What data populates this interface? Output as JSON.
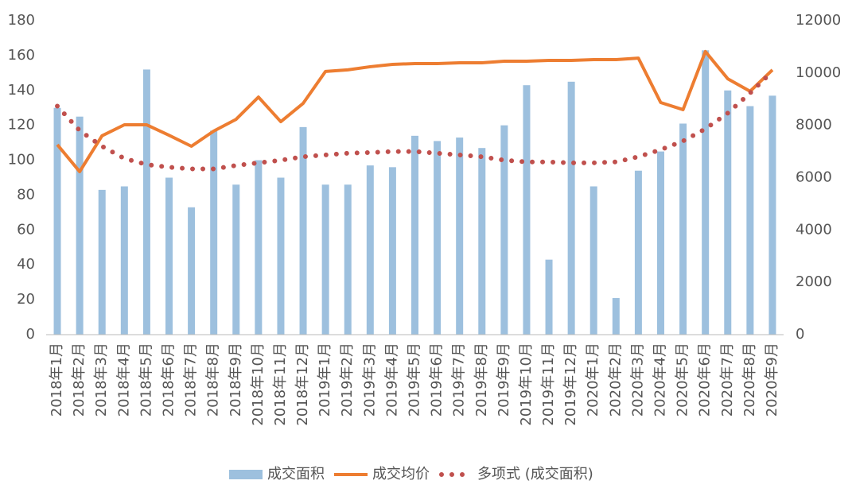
{
  "chart_data": {
    "type": "bar",
    "categories": [
      "2018年1月",
      "2018年2月",
      "2018年3月",
      "2018年4月",
      "2018年5月",
      "2018年6月",
      "2018年7月",
      "2018年8月",
      "2018年9月",
      "2018年10月",
      "2018年11月",
      "2018年12月",
      "2019年1月",
      "2019年2月",
      "2019年3月",
      "2019年4月",
      "2019年5月",
      "2019年6月",
      "2019年7月",
      "2019年8月",
      "2019年9月",
      "2019年10月",
      "2019年11月",
      "2019年12月",
      "2020年1月",
      "2020年2月",
      "2020年3月",
      "2020年4月",
      "2020年5月",
      "2020年6月",
      "2020年7月",
      "2020年8月",
      "2020年9月"
    ],
    "series": [
      {
        "name": "成交面积",
        "type": "bar",
        "color": "#9dc0de",
        "values": [
          130,
          125,
          83,
          85,
          152,
          90,
          73,
          117,
          86,
          100,
          90,
          119,
          86,
          86,
          97,
          96,
          114,
          111,
          113,
          107,
          120,
          143,
          43,
          145,
          85,
          21,
          94,
          105,
          121,
          163,
          140,
          131,
          137
        ]
      },
      {
        "name": "成交均价",
        "type": "line",
        "axis": "y2",
        "color": "#ed7d31",
        "values": [
          7260,
          6230,
          7600,
          8020,
          8020,
          7620,
          7200,
          7780,
          8230,
          9080,
          8140,
          8840,
          10060,
          10120,
          10240,
          10330,
          10360,
          10360,
          10390,
          10390,
          10450,
          10450,
          10480,
          10480,
          10510,
          10510,
          10570,
          8870,
          8600,
          10820,
          9780,
          9300,
          10120
        ]
      },
      {
        "name": "多项式 (成交面积)",
        "type": "dotted",
        "color": "#c0504d",
        "values": [
          131,
          117,
          108,
          101,
          97.5,
          96,
          95,
          95,
          97,
          98.5,
          100,
          102,
          103,
          104,
          104.4,
          105,
          105,
          104,
          103,
          102,
          100,
          99,
          99,
          98.5,
          98.5,
          99,
          102,
          106,
          111,
          118,
          127,
          138.5,
          151
        ]
      }
    ],
    "ylim": [
      0,
      180
    ],
    "yticks": [
      0,
      20,
      40,
      60,
      80,
      100,
      120,
      140,
      160,
      180
    ],
    "y2lim": [
      0,
      12000
    ],
    "y2ticks": [
      0,
      2000,
      4000,
      6000,
      8000,
      10000,
      12000
    ],
    "legend": "bottom"
  }
}
